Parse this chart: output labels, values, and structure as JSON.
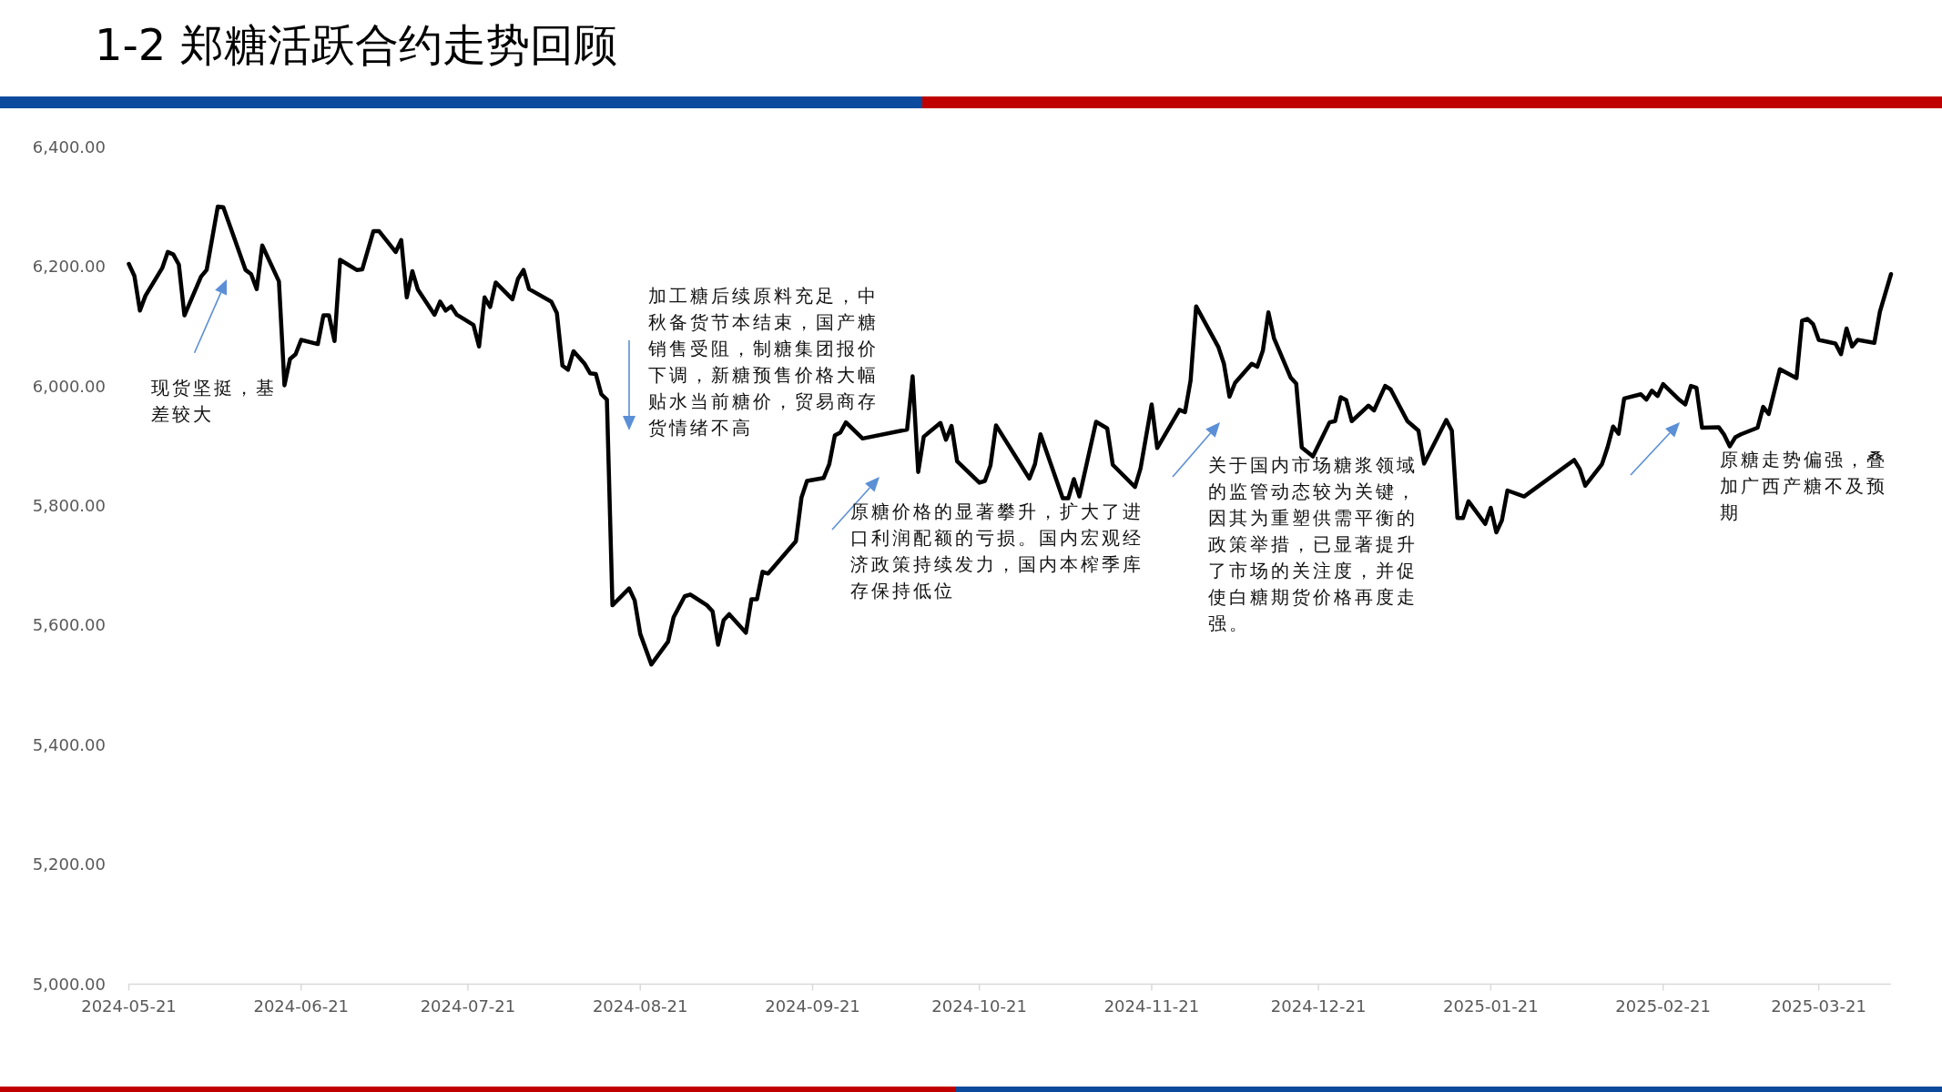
{
  "chart_data": {
    "type": "line",
    "title": "1-2 郑糖活跃合约走势回顾",
    "x": [
      "2024-05-21",
      "2024-05-22",
      "2024-05-23",
      "2024-05-24",
      "2024-05-27",
      "2024-05-28",
      "2024-05-29",
      "2024-05-30",
      "2024-05-31",
      "2024-06-03",
      "2024-06-04",
      "2024-06-06",
      "2024-06-07",
      "2024-06-11",
      "2024-06-12",
      "2024-06-13",
      "2024-06-14",
      "2024-06-17",
      "2024-06-18",
      "2024-06-19",
      "2024-06-20",
      "2024-06-21",
      "2024-06-24",
      "2024-06-25",
      "2024-06-26",
      "2024-06-27",
      "2024-06-28",
      "2024-07-01",
      "2024-07-02",
      "2024-07-04",
      "2024-07-05",
      "2024-07-08",
      "2024-07-09",
      "2024-07-10",
      "2024-07-11",
      "2024-07-12",
      "2024-07-15",
      "2024-07-16",
      "2024-07-17",
      "2024-07-18",
      "2024-07-19",
      "2024-07-22",
      "2024-07-23",
      "2024-07-24",
      "2024-07-25",
      "2024-07-26",
      "2024-07-29",
      "2024-07-30",
      "2024-07-31",
      "2024-08-01",
      "2024-08-05",
      "2024-08-06",
      "2024-08-07",
      "2024-08-08",
      "2024-08-09",
      "2024-08-11",
      "2024-08-12",
      "2024-08-13",
      "2024-08-14",
      "2024-08-15",
      "2024-08-16",
      "2024-08-19",
      "2024-08-20",
      "2024-08-21",
      "2024-08-23",
      "2024-08-26",
      "2024-08-27",
      "2024-08-29",
      "2024-08-30",
      "2024-09-02",
      "2024-09-03",
      "2024-09-04",
      "2024-09-05",
      "2024-09-06",
      "2024-09-09",
      "2024-09-10",
      "2024-09-11",
      "2024-09-12",
      "2024-09-13",
      "2024-09-18",
      "2024-09-19",
      "2024-09-20",
      "2024-09-23",
      "2024-09-24",
      "2024-09-25",
      "2024-09-26",
      "2024-09-27",
      "2024-09-30",
      "2024-10-08",
      "2024-10-09",
      "2024-10-10",
      "2024-10-11",
      "2024-10-14",
      "2024-10-15",
      "2024-10-16",
      "2024-10-17",
      "2024-10-21",
      "2024-10-22",
      "2024-10-23",
      "2024-10-24",
      "2024-10-30",
      "2024-10-31",
      "2024-11-01",
      "2024-11-05",
      "2024-11-06",
      "2024-11-07",
      "2024-11-08",
      "2024-11-11",
      "2024-11-13",
      "2024-11-14",
      "2024-11-18",
      "2024-11-19",
      "2024-11-21",
      "2024-11-22",
      "2024-11-26",
      "2024-11-27",
      "2024-11-28",
      "2024-11-29",
      "2024-12-03",
      "2024-12-04",
      "2024-12-05",
      "2024-12-06",
      "2024-12-09",
      "2024-12-10",
      "2024-12-11",
      "2024-12-12",
      "2024-12-13",
      "2024-12-16",
      "2024-12-17",
      "2024-12-18",
      "2024-12-20",
      "2024-12-23",
      "2024-12-24",
      "2024-12-25",
      "2024-12-26",
      "2024-12-27",
      "2024-12-30",
      "2024-12-31",
      "2025-01-02",
      "2025-01-03",
      "2025-01-06",
      "2025-01-08",
      "2025-01-09",
      "2025-01-13",
      "2025-01-14",
      "2025-01-15",
      "2025-01-16",
      "2025-01-17",
      "2025-01-20",
      "2025-01-21",
      "2025-01-22",
      "2025-01-23",
      "2025-01-24",
      "2025-01-27",
      "2025-02-05",
      "2025-02-06",
      "2025-02-07",
      "2025-02-10",
      "2025-02-11",
      "2025-02-12",
      "2025-02-13",
      "2025-02-14",
      "2025-02-17",
      "2025-02-18",
      "2025-02-19",
      "2025-02-20",
      "2025-02-21",
      "2025-02-24",
      "2025-02-25",
      "2025-02-26",
      "2025-02-27",
      "2025-02-28",
      "2025-03-03",
      "2025-03-04",
      "2025-03-05",
      "2025-03-06",
      "2025-03-07",
      "2025-03-10",
      "2025-03-11",
      "2025-03-12",
      "2025-03-14",
      "2025-03-17",
      "2025-03-18",
      "2025-03-19",
      "2025-03-20",
      "2025-03-21",
      "2025-03-24",
      "2025-03-25",
      "2025-03-26",
      "2025-03-27",
      "2025-03-28",
      "2025-03-31",
      "2025-04-01",
      "2025-04-03"
    ],
    "series": [
      {
        "color": "#000000",
        "values": [
          6205,
          6185,
          6127,
          6152,
          6198,
          6225,
          6221,
          6204,
          6119,
          6184,
          6195,
          6301,
          6300,
          6195,
          6188,
          6163,
          6236,
          6176,
          6002,
          6046,
          6054,
          6078,
          6071,
          6119,
          6119,
          6076,
          6212,
          6195,
          6196,
          6260,
          6260,
          6225,
          6245,
          6149,
          6193,
          6162,
          6120,
          6142,
          6127,
          6134,
          6120,
          6103,
          6067,
          6149,
          6133,
          6174,
          6146,
          6180,
          6195,
          6163,
          6142,
          6123,
          6035,
          6028,
          6059,
          6038,
          6022,
          6021,
          5987,
          5978,
          5634,
          5662,
          5642,
          5586,
          5535,
          5573,
          5614,
          5649,
          5652,
          5634,
          5624,
          5568,
          5609,
          5619,
          5588,
          5644,
          5644,
          5690,
          5687,
          5741,
          5814,
          5842,
          5847,
          5870,
          5918,
          5923,
          5940,
          5913,
          5928,
          6017,
          5857,
          5916,
          5939,
          5911,
          5934,
          5875,
          5839,
          5842,
          5868,
          5935,
          5846,
          5870,
          5920,
          5813,
          5813,
          5845,
          5816,
          5941,
          5930,
          5869,
          5832,
          5863,
          5970,
          5897,
          5961,
          5957,
          6010,
          6134,
          6066,
          6038,
          5983,
          6006,
          6038,
          6033,
          6060,
          6124,
          6081,
          6015,
          6005,
          5898,
          5883,
          5940,
          5942,
          5982,
          5977,
          5942,
          5968,
          5960,
          6001,
          5995,
          5942,
          5926,
          5871,
          5944,
          5926,
          5780,
          5780,
          5808,
          5770,
          5797,
          5756,
          5776,
          5826,
          5816,
          5877,
          5862,
          5834,
          5870,
          5898,
          5933,
          5921,
          5980,
          5987,
          5978,
          5993,
          5984,
          6004,
          5977,
          5970,
          6001,
          5998,
          5931,
          5932,
          5919,
          5900,
          5915,
          5920,
          5931,
          5966,
          5954,
          6029,
          6014,
          6110,
          6113,
          6104,
          6078,
          6072,
          6054,
          6097,
          6067,
          6078,
          6073,
          6125,
          6188
        ]
      }
    ],
    "xlim": [
      "2024-05-21",
      "2025-04-03"
    ],
    "xticks": [
      "2024-05-21",
      "2024-06-21",
      "2024-07-21",
      "2024-08-21",
      "2024-09-21",
      "2024-10-21",
      "2024-11-21",
      "2024-12-21",
      "2025-01-21",
      "2025-02-21",
      "2025-03-21"
    ],
    "ylim": [
      5000,
      6400
    ],
    "yticks": [
      {
        "value": 5000,
        "label": "5,000.00"
      },
      {
        "value": 5200,
        "label": "5,200.00"
      },
      {
        "value": 5400,
        "label": "5,400.00"
      },
      {
        "value": 5600,
        "label": "5,600.00"
      },
      {
        "value": 5800,
        "label": "5,800.00"
      },
      {
        "value": 6000,
        "label": "6,000.00"
      },
      {
        "value": 6200,
        "label": "6,200.00"
      },
      {
        "value": 6400,
        "label": "6,400.00"
      }
    ],
    "grid": false,
    "annotations": [
      "现货坚挺，基差较大",
      "加工糖后续原料充足，中秋备货节本结束，国产糖销售受阻，制糖集团报价下调，新糖预售价格大幅贴水当前糖价，贸易商存货情绪不高",
      "原糖价格的显著攀升，扩大了进口利润配额的亏损。国内宏观经济政策持续发力，国内本榨季库存保持低位",
      "关于国内市场糖浆领域的监管动态较为关键，因其为重塑供需平衡的政策举措，已显著提升了市场的关注度，并促使白糖期货价格再度走强。",
      "原糖走势偏强，叠加广西产糖不及预期"
    ]
  }
}
